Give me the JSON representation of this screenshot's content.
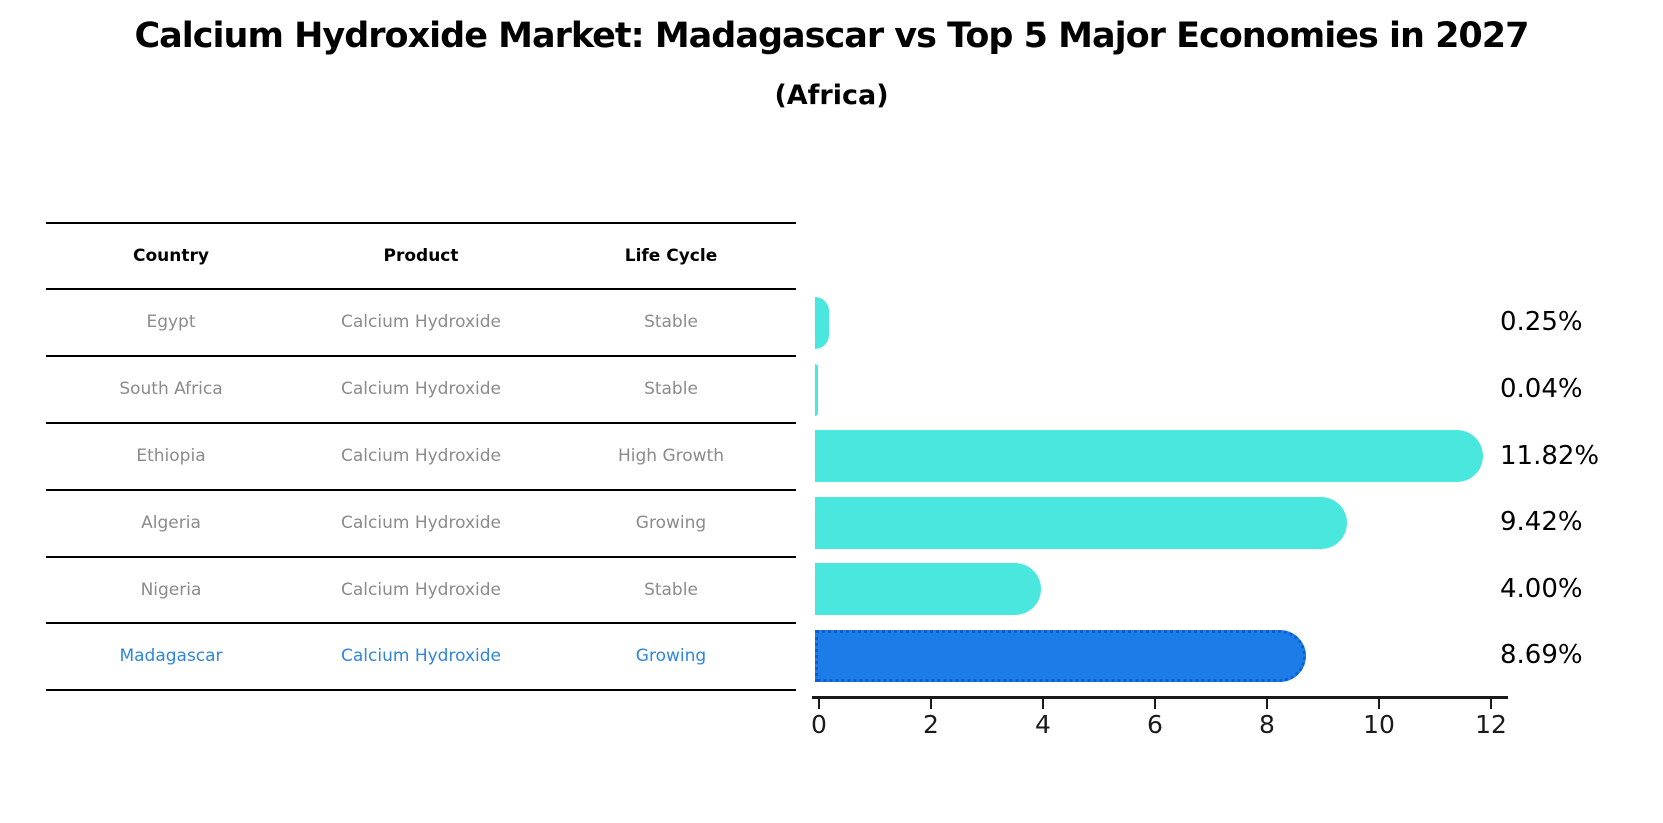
{
  "title": "Calcium Hydroxide Market: Madagascar vs Top 5 Major Economies in 2027",
  "subtitle": "(Africa)",
  "table": {
    "headers": [
      "Country",
      "Product",
      "Life Cycle"
    ],
    "rows": [
      {
        "country": "Egypt",
        "product": "Calcium Hydroxide",
        "life_cycle": "Stable"
      },
      {
        "country": "South Africa",
        "product": "Calcium Hydroxide",
        "life_cycle": "Stable"
      },
      {
        "country": "Ethiopia",
        "product": "Calcium Hydroxide",
        "life_cycle": "High Growth"
      },
      {
        "country": "Algeria",
        "product": "Calcium Hydroxide",
        "life_cycle": "Growing"
      },
      {
        "country": "Nigeria",
        "product": "Calcium Hydroxide",
        "life_cycle": "Stable"
      },
      {
        "country": "Madagascar",
        "product": "Calcium Hydroxide",
        "life_cycle": "Growing"
      }
    ]
  },
  "chart_data": {
    "type": "bar",
    "orientation": "horizontal",
    "title": "Calcium Hydroxide Market: Madagascar vs Top 5 Major Economies in 2027",
    "subtitle": "(Africa)",
    "categories": [
      "Egypt",
      "South Africa",
      "Ethiopia",
      "Algeria",
      "Nigeria",
      "Madagascar"
    ],
    "values": [
      0.25,
      0.04,
      11.82,
      9.42,
      4.0,
      8.69
    ],
    "value_labels": [
      "0.25%",
      "0.04%",
      "11.82%",
      "9.42%",
      "4.00%",
      "8.69%"
    ],
    "unit": "percent",
    "x_ticks": [
      "0",
      "2",
      "4",
      "6",
      "8",
      "10",
      "12"
    ],
    "xlim": [
      0,
      12.3
    ],
    "grid": false,
    "legend": "none",
    "highlight_index": 5,
    "colors": {
      "bar": "#4ae7df",
      "highlight_bar": "#1c7ce8",
      "highlight_bar_border": "#0d5fd0",
      "highlight_text": "#2e86de",
      "table_text": "#8b8b8b",
      "header_text": "#000000",
      "axis": "#1a1a1a"
    }
  }
}
